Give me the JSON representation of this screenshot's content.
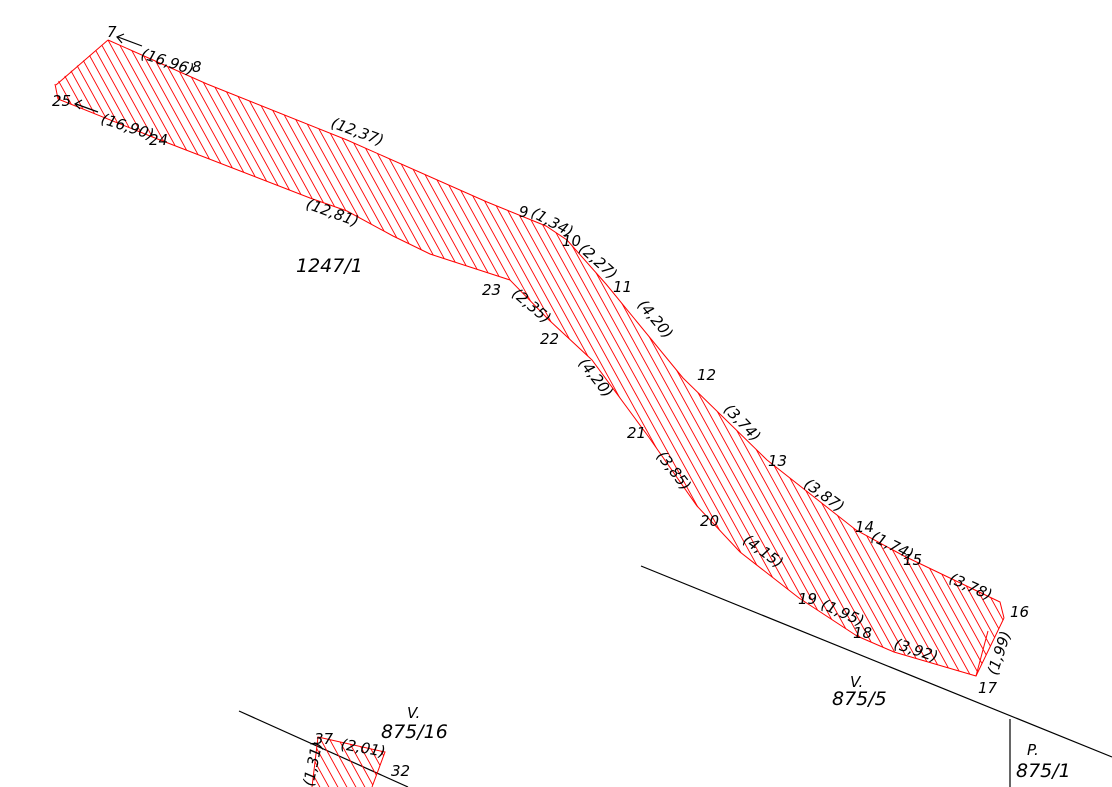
{
  "parcels": {
    "main": "1247/1",
    "v_875_5": "875/5",
    "v_875_16": "875/16",
    "p_875_1": "875/1",
    "v_mark": "V.",
    "p_mark": "P."
  },
  "points": {
    "p7": "7",
    "p8": "8",
    "p9": "9",
    "p10": "10",
    "p11": "11",
    "p12": "12",
    "p13": "13",
    "p14": "14",
    "p15": "15",
    "p16": "16",
    "p17": "17",
    "p18": "18",
    "p19": "19",
    "p20": "20",
    "p21": "21",
    "p22": "22",
    "p23": "23",
    "p24": "24",
    "p25": "25",
    "p37": "37",
    "p32": "32"
  },
  "distances": {
    "d7_8": "(16,96)",
    "d25_24": "(16,90)",
    "d8_9": "(12,37)",
    "d24_23": "(12,81)",
    "d9_10": "(1,34)",
    "d10_11": "(2,27)",
    "d11_12": "(4,20)",
    "d23_22": "(2,35)",
    "d22_21": "(4,20)",
    "d12_13": "(3,74)",
    "d21_20": "(3,85)",
    "d13_14": "(3,87)",
    "d20_19": "(4,15)",
    "d14_15": "(1,74)",
    "d15_16": "(3,78)",
    "d19_18": "(1,95)",
    "d18_17": "(3,92)",
    "d16_17": "(1,99)",
    "d37_32": "(2,01)",
    "d_left": "(1,31)"
  },
  "colors": {
    "strip": "#ff0000",
    "boundary": "#000000"
  }
}
